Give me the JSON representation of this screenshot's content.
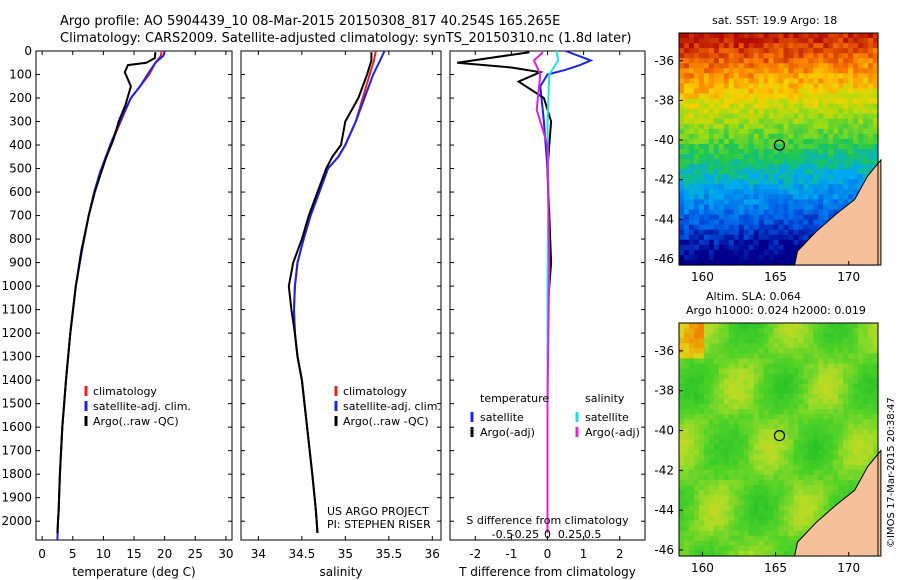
{
  "header": {
    "title_line1": "Argo profile: AO 5904439_10 08-Mar-2015 20150308_817 40.254S 165.265E",
    "title_line2": "Climatology: CARS2009. Satellite-adjusted climatology: synTS_20150310.nc (1.8d later)"
  },
  "colors": {
    "climatology": "#e8201c",
    "satellite": "#1a24e8",
    "argo": "#000000",
    "sal_satellite": "#22e0e8",
    "sal_argo": "#e020e0",
    "land": "#f5c09a"
  },
  "chart_data": [
    {
      "type": "line",
      "panel": "temperature",
      "xlabel": "temperature (deg C)",
      "xlim": [
        -1,
        31
      ],
      "xticks": [
        0,
        5,
        10,
        15,
        20,
        25,
        30
      ],
      "ylim": [
        2080,
        0
      ],
      "yticks": [
        0,
        100,
        200,
        300,
        400,
        500,
        600,
        700,
        800,
        900,
        1000,
        1100,
        1200,
        1300,
        1400,
        1500,
        1600,
        1700,
        1800,
        1900,
        2000
      ],
      "legend": [
        "climatology",
        "satellite-adj. clim.",
        "Argo(..raw -QC)"
      ],
      "series": [
        {
          "name": "climatology",
          "x": [
            19.5,
            19.4,
            18.5,
            17.5,
            16.0,
            14.5,
            13.5,
            12.5,
            11.5,
            10.5,
            9.5,
            8.5,
            7.6,
            6.5,
            5.5,
            4.6,
            3.9,
            3.3,
            2.9,
            2.7,
            2.6,
            2.5
          ],
          "y": [
            0,
            20,
            50,
            100,
            150,
            200,
            260,
            320,
            380,
            450,
            520,
            600,
            700,
            850,
            1000,
            1200,
            1400,
            1600,
            1800,
            1950,
            2000,
            2080
          ]
        },
        {
          "name": "satellite-adj. clim.",
          "x": [
            20.0,
            19.8,
            18.5,
            17.2,
            16.0,
            14.5,
            13.4,
            12.4,
            11.4,
            10.4,
            9.4,
            8.5,
            7.6,
            6.5,
            5.5,
            4.6,
            3.9,
            3.3,
            2.9,
            2.7,
            2.6,
            2.5
          ],
          "y": [
            0,
            20,
            50,
            100,
            150,
            200,
            260,
            320,
            380,
            450,
            520,
            600,
            700,
            850,
            1000,
            1200,
            1400,
            1600,
            1800,
            1950,
            2000,
            2080
          ]
        },
        {
          "name": "Argo(..raw -QC)",
          "x": [
            18.5,
            18.4,
            17.0,
            14.0,
            13.5,
            14.5,
            13.6,
            12.5,
            11.6,
            10.5,
            9.6,
            8.6,
            7.6,
            6.4,
            5.5,
            4.6,
            3.9,
            3.3,
            2.9,
            2.7,
            2.6,
            2.5
          ],
          "y": [
            5,
            30,
            50,
            60,
            90,
            150,
            230,
            300,
            380,
            450,
            520,
            600,
            700,
            850,
            1000,
            1200,
            1400,
            1600,
            1800,
            1950,
            2000,
            2050
          ]
        }
      ]
    },
    {
      "type": "line",
      "panel": "salinity",
      "xlabel": "salinity",
      "xlim": [
        33.8,
        36.1
      ],
      "xticks": [
        34,
        34.5,
        35,
        35.5,
        36
      ],
      "xticklabels": [
        "34",
        "34.5",
        "35",
        "35.5",
        "36"
      ],
      "ylim": [
        2080,
        0
      ],
      "legend": [
        "climatology",
        "satellite-adj. clim.",
        "Argo(..raw -QC)"
      ],
      "annotation": [
        "US ARGO PROJECT",
        "PI: STEPHEN RISER"
      ],
      "series": [
        {
          "name": "climatology",
          "x": [
            35.35,
            35.33,
            35.28,
            35.2,
            35.12,
            35.0,
            34.92,
            34.8,
            34.7,
            34.6,
            34.52,
            34.45,
            34.42,
            34.41,
            34.42,
            34.45,
            34.5,
            34.56,
            34.62,
            34.66,
            34.68
          ],
          "y": [
            0,
            40,
            100,
            200,
            300,
            400,
            450,
            500,
            600,
            700,
            800,
            900,
            1000,
            1100,
            1200,
            1300,
            1400,
            1600,
            1800,
            1950,
            2050
          ]
        },
        {
          "name": "satellite-adj. clim.",
          "x": [
            35.45,
            35.4,
            35.32,
            35.22,
            35.12,
            35.0,
            34.92,
            34.8,
            34.7,
            34.6,
            34.52,
            34.45,
            34.42,
            34.41,
            34.42,
            34.45,
            34.5,
            34.56,
            34.62,
            34.66,
            34.68
          ],
          "y": [
            0,
            40,
            100,
            200,
            300,
            400,
            450,
            500,
            600,
            700,
            800,
            900,
            1000,
            1100,
            1200,
            1300,
            1400,
            1600,
            1800,
            1950,
            2050
          ]
        },
        {
          "name": "Argo(..raw -QC)",
          "x": [
            35.3,
            35.3,
            35.25,
            35.15,
            35.0,
            34.95,
            34.85,
            34.78,
            34.68,
            34.58,
            34.5,
            34.4,
            34.35,
            34.38,
            34.42,
            34.45,
            34.5,
            34.56,
            34.62,
            34.66,
            34.68
          ],
          "y": [
            5,
            40,
            100,
            200,
            300,
            400,
            450,
            500,
            600,
            700,
            800,
            900,
            1000,
            1100,
            1200,
            1300,
            1400,
            1600,
            1800,
            1950,
            2050
          ]
        }
      ]
    },
    {
      "type": "line",
      "panel": "difference",
      "xlabel": "T difference from climatology",
      "xlabel_top": "S difference from climatology",
      "xlim": [
        -2.7,
        2.7
      ],
      "xticks": [
        -2,
        -1,
        0,
        1,
        2
      ],
      "sticks": [
        -0.5,
        -0.25,
        0,
        0.25,
        0.5
      ],
      "sticklabels": [
        "-0.5",
        "-0.25",
        "0",
        "0.25",
        "0.5"
      ],
      "ylim": [
        2080,
        0
      ],
      "legend_temperature": [
        "temperature",
        "satellite",
        "Argo(-adj)"
      ],
      "legend_salinity": [
        "salinity",
        "satellite",
        "Argo(-adj)"
      ],
      "series": [
        {
          "name": "T satellite",
          "x": [
            0.5,
            1.2,
            0.9,
            0.5,
            0.0,
            -0.2,
            -0.1,
            0.0,
            0.05,
            0.0,
            0.0,
            0.0
          ],
          "y": [
            0,
            40,
            60,
            80,
            100,
            150,
            300,
            500,
            800,
            1100,
            1500,
            2050
          ]
        },
        {
          "name": "T Argo(-adj)",
          "x": [
            -0.5,
            -2.5,
            -1.0,
            -0.2,
            -0.8,
            -0.1,
            0.1,
            0.0,
            0.1,
            0.0,
            0.0,
            0.0
          ],
          "y": [
            5,
            50,
            70,
            90,
            130,
            200,
            300,
            500,
            900,
            1100,
            1500,
            2050
          ]
        },
        {
          "name": "S satellite",
          "x": [
            0.1,
            0.12,
            0.02,
            0.0,
            0.01,
            0.0,
            0.0,
            0.0
          ],
          "y": [
            0,
            40,
            100,
            300,
            600,
            1000,
            1500,
            2050
          ]
        },
        {
          "name": "S Argo(-adj)",
          "x": [
            -0.05,
            -0.15,
            -0.08,
            -0.12,
            0.0,
            0.02,
            0.0,
            0.0
          ],
          "y": [
            5,
            40,
            100,
            250,
            400,
            900,
            1500,
            2050
          ]
        }
      ]
    },
    {
      "type": "heatmap",
      "panel": "sst_map",
      "title": "sat. SST: 19.9 Argo: 18",
      "xticks": [
        160,
        165,
        170
      ],
      "yticks": [
        -36,
        -38,
        -40,
        -42,
        -44,
        -46
      ],
      "xlim": [
        158.4,
        172
      ],
      "ylim": [
        -46.3,
        -34.6
      ],
      "argo_position": [
        165.265,
        -40.254
      ]
    },
    {
      "type": "heatmap",
      "panel": "sla_map",
      "title_line1": "Altim. SLA: 0.064",
      "title_line2": "Argo h1000: 0.024 h2000: 0.019",
      "xticks": [
        160,
        165,
        170
      ],
      "yticks": [
        -36,
        -38,
        -40,
        -42,
        -44,
        -46
      ],
      "xlim": [
        158.4,
        172
      ],
      "ylim": [
        -46.3,
        -34.6
      ],
      "argo_position": [
        165.265,
        -40.254
      ]
    }
  ],
  "footer": {
    "credit": "©IMOS 17-Mar-2015 20:38:47"
  }
}
